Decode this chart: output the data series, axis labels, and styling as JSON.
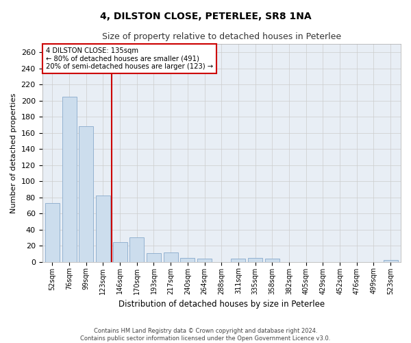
{
  "title": "4, DILSTON CLOSE, PETERLEE, SR8 1NA",
  "subtitle": "Size of property relative to detached houses in Peterlee",
  "xlabel": "Distribution of detached houses by size in Peterlee",
  "ylabel": "Number of detached properties",
  "footer_line1": "Contains HM Land Registry data © Crown copyright and database right 2024.",
  "footer_line2": "Contains public sector information licensed under the Open Government Licence v3.0.",
  "annotation_line1": "4 DILSTON CLOSE: 135sqm",
  "annotation_line2": "← 80% of detached houses are smaller (491)",
  "annotation_line3": "20% of semi-detached houses are larger (123) →",
  "bar_color": "#ccdded",
  "bar_edge_color": "#88aacc",
  "red_line_color": "#cc0000",
  "annotation_box_edgecolor": "#cc0000",
  "grid_color": "#cccccc",
  "bg_color": "#e8eef5",
  "categories": [
    "52sqm",
    "76sqm",
    "99sqm",
    "123sqm",
    "146sqm",
    "170sqm",
    "193sqm",
    "217sqm",
    "240sqm",
    "264sqm",
    "288sqm",
    "311sqm",
    "335sqm",
    "358sqm",
    "382sqm",
    "405sqm",
    "429sqm",
    "452sqm",
    "476sqm",
    "499sqm",
    "523sqm"
  ],
  "values": [
    73,
    205,
    168,
    82,
    24,
    30,
    11,
    12,
    5,
    4,
    0,
    4,
    5,
    4,
    0,
    0,
    0,
    0,
    0,
    0,
    2
  ],
  "ylim": [
    0,
    270
  ],
  "yticks": [
    0,
    20,
    40,
    60,
    80,
    100,
    120,
    140,
    160,
    180,
    200,
    220,
    240,
    260
  ],
  "red_line_x": 3.5,
  "bar_width": 0.85
}
